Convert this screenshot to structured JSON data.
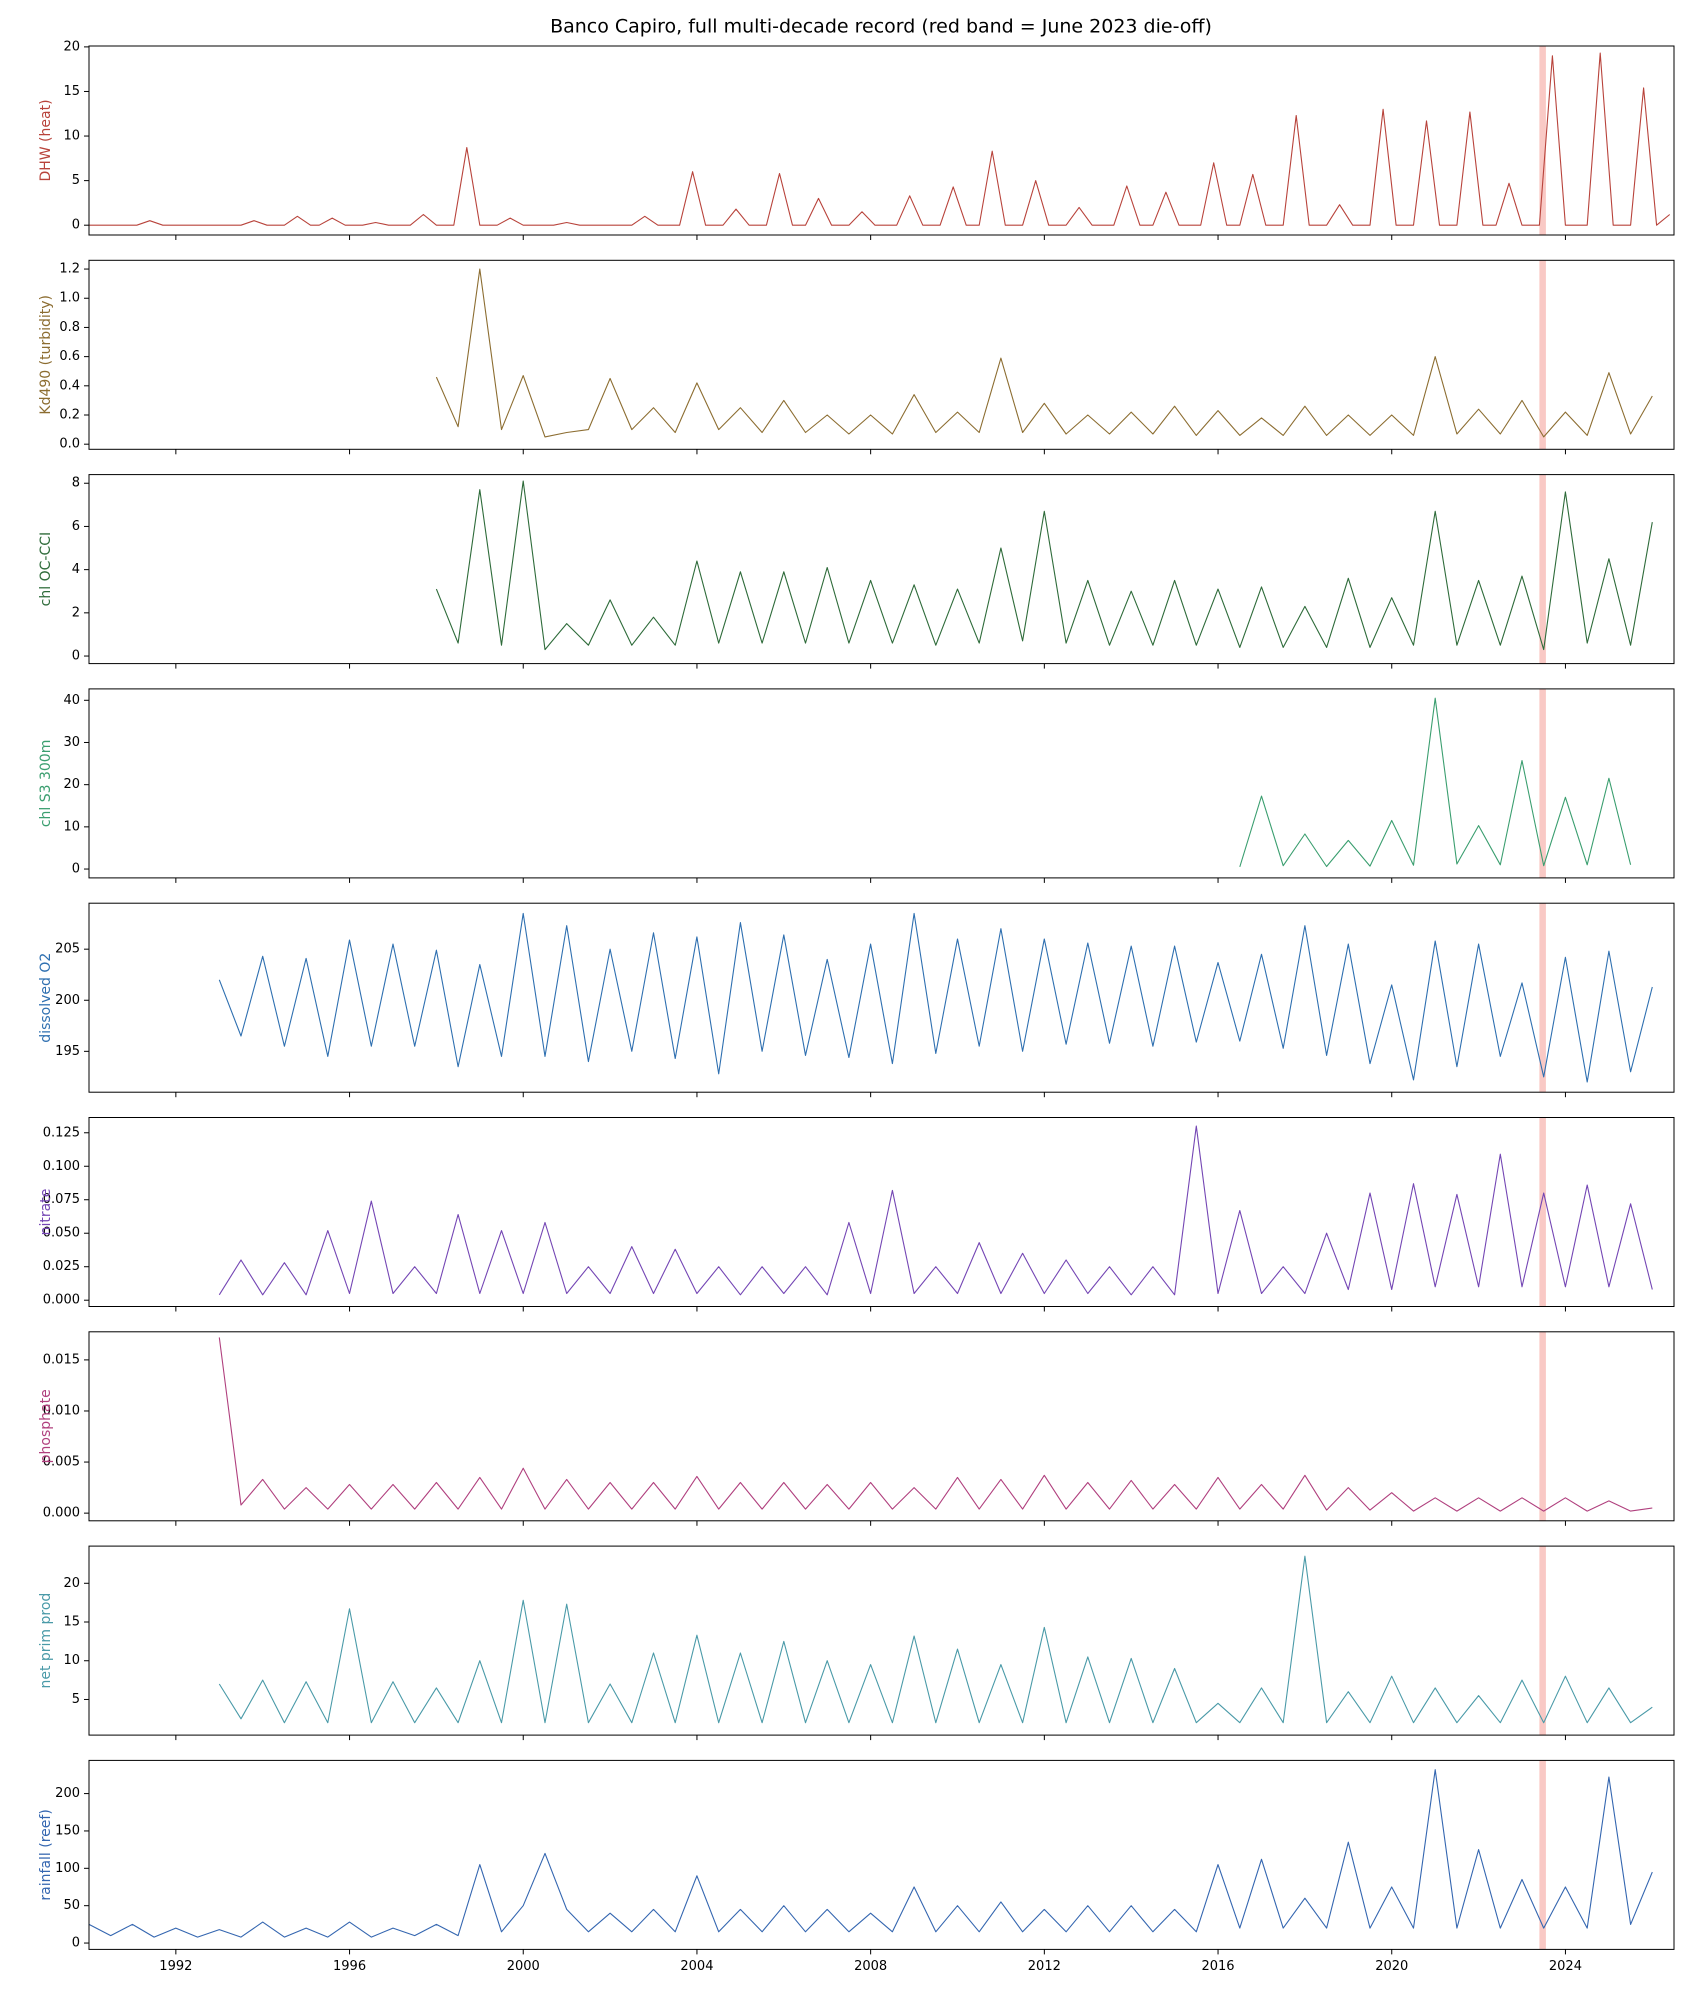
{
  "title": "Banco Capiro, full multi-decade record (red band = June 2023 die-off)",
  "xaxis": {
    "xlim": [
      1990,
      2026.5
    ],
    "xticks": [
      1992,
      1996,
      2000,
      2004,
      2008,
      2012,
      2016,
      2020,
      2024
    ]
  },
  "highlight": {
    "xlim": [
      2023.4,
      2023.55
    ],
    "color": "#f9c9c5"
  },
  "chart_data": [
    {
      "type": "line",
      "ylabel": "DHW (heat)",
      "color": "#b8433b",
      "ylim": [
        -1.1,
        20.1
      ],
      "yticks": [
        0,
        5,
        10,
        15,
        20
      ],
      "x": [
        1990,
        1991.1,
        1991.4,
        1991.7,
        1993.5,
        1993.8,
        1994.1,
        1994.5,
        1994.8,
        1995.1,
        1995.3,
        1995.6,
        1995.9,
        1996.3,
        1996.6,
        1996.9,
        1997.4,
        1997.7,
        1998.0,
        1998.4,
        1998.7,
        1999.0,
        1999.4,
        1999.7,
        2000.0,
        2000.7,
        2001.0,
        2001.3,
        2002.5,
        2002.8,
        2003.1,
        2003.6,
        2003.9,
        2004.2,
        2004.6,
        2004.9,
        2005.2,
        2005.6,
        2005.9,
        2006.2,
        2006.5,
        2006.8,
        2007.1,
        2007.5,
        2007.8,
        2008.1,
        2008.6,
        2008.9,
        2009.2,
        2009.6,
        2009.9,
        2010.2,
        2010.5,
        2010.8,
        2011.1,
        2011.5,
        2011.8,
        2012.1,
        2012.5,
        2012.8,
        2013.1,
        2013.6,
        2013.9,
        2014.2,
        2014.5,
        2014.8,
        2015.1,
        2015.6,
        2015.9,
        2016.2,
        2016.5,
        2016.8,
        2017.1,
        2017.5,
        2017.8,
        2018.1,
        2018.5,
        2018.8,
        2019.1,
        2019.5,
        2019.8,
        2020.1,
        2020.5,
        2020.8,
        2021.1,
        2021.5,
        2021.8,
        2022.1,
        2022.4,
        2022.7,
        2023.0,
        2023.4,
        2023.7,
        2024.0,
        2024.5,
        2024.8,
        2025.1,
        2025.5,
        2025.8,
        2026.1,
        2026.4
      ],
      "values": [
        0,
        0,
        0.5,
        0,
        0,
        0.5,
        0,
        0,
        1.0,
        0,
        0,
        0.8,
        0,
        0,
        0.3,
        0,
        0,
        1.2,
        0,
        0,
        8.7,
        0,
        0,
        0.8,
        0,
        0,
        0.3,
        0,
        0,
        1.0,
        0,
        0,
        6.0,
        0,
        0,
        1.8,
        0,
        0,
        5.8,
        0,
        0,
        3.0,
        0,
        0,
        1.5,
        0,
        0,
        3.3,
        0,
        0,
        4.3,
        0,
        0,
        8.3,
        0,
        0,
        5.0,
        0,
        0,
        2.0,
        0,
        0,
        4.4,
        0,
        0,
        3.7,
        0,
        0,
        7.0,
        0,
        0,
        5.7,
        0,
        0,
        12.3,
        0,
        0,
        2.3,
        0,
        0,
        13.0,
        0,
        0,
        11.7,
        0,
        0,
        12.7,
        0,
        0,
        4.7,
        0,
        0,
        19.0,
        0,
        0,
        19.3,
        0,
        0,
        15.4,
        0,
        1.2
      ]
    },
    {
      "type": "line",
      "ylabel": "Kd490 (turbidity)",
      "color": "#8c6d31",
      "ylim": [
        -0.035,
        1.26
      ],
      "yticks": [
        {
          "value": 0,
          "label": "0.0"
        },
        0.2,
        0.4,
        0.6,
        0.8,
        {
          "value": 1,
          "label": "1.0"
        },
        1.2
      ],
      "x": [
        1998,
        1998.5,
        1999,
        1999.5,
        2000,
        2000.5,
        2001,
        2001.5,
        2002,
        2002.5,
        2003,
        2003.5,
        2004,
        2004.5,
        2005,
        2005.5,
        2006,
        2006.5,
        2007,
        2007.5,
        2008,
        2008.5,
        2009,
        2009.5,
        2010,
        2010.5,
        2011,
        2011.5,
        2012,
        2012.5,
        2013,
        2013.5,
        2014,
        2014.5,
        2015,
        2015.5,
        2016,
        2016.5,
        2017,
        2017.5,
        2018,
        2018.5,
        2019,
        2019.5,
        2020,
        2020.5,
        2021,
        2021.5,
        2022,
        2022.5,
        2023,
        2023.5,
        2024,
        2024.5,
        2025,
        2025.5,
        2026
      ],
      "values": [
        0.46,
        0.12,
        1.2,
        0.1,
        0.47,
        0.05,
        0.08,
        0.1,
        0.45,
        0.1,
        0.25,
        0.08,
        0.42,
        0.1,
        0.25,
        0.08,
        0.3,
        0.08,
        0.2,
        0.07,
        0.2,
        0.07,
        0.34,
        0.08,
        0.22,
        0.08,
        0.59,
        0.08,
        0.28,
        0.07,
        0.2,
        0.07,
        0.22,
        0.07,
        0.26,
        0.06,
        0.23,
        0.06,
        0.18,
        0.06,
        0.26,
        0.06,
        0.2,
        0.06,
        0.2,
        0.06,
        0.6,
        0.07,
        0.24,
        0.07,
        0.3,
        0.05,
        0.22,
        0.06,
        0.49,
        0.07,
        0.33
      ]
    },
    {
      "type": "line",
      "ylabel": "chl OC-CCI",
      "color": "#2e6b3a",
      "ylim": [
        -0.35,
        8.4
      ],
      "yticks": [
        0,
        2,
        4,
        6,
        8
      ],
      "x": [
        1998,
        1998.5,
        1999,
        1999.5,
        2000,
        2000.5,
        2001,
        2001.5,
        2002,
        2002.5,
        2003,
        2003.5,
        2004,
        2004.5,
        2005,
        2005.5,
        2006,
        2006.5,
        2007,
        2007.5,
        2008,
        2008.5,
        2009,
        2009.5,
        2010,
        2010.5,
        2011,
        2011.5,
        2012,
        2012.5,
        2013,
        2013.5,
        2014,
        2014.5,
        2015,
        2015.5,
        2016,
        2016.5,
        2017,
        2017.5,
        2018,
        2018.5,
        2019,
        2019.5,
        2020,
        2020.5,
        2021,
        2021.5,
        2022,
        2022.5,
        2023,
        2023.5,
        2024,
        2024.5,
        2025,
        2025.5,
        2026
      ],
      "values": [
        3.1,
        0.6,
        7.7,
        0.5,
        8.1,
        0.3,
        1.5,
        0.5,
        2.6,
        0.5,
        1.8,
        0.5,
        4.4,
        0.6,
        3.9,
        0.6,
        3.9,
        0.6,
        4.1,
        0.6,
        3.5,
        0.6,
        3.3,
        0.5,
        3.1,
        0.6,
        5.0,
        0.7,
        6.7,
        0.6,
        3.5,
        0.5,
        3.0,
        0.5,
        3.5,
        0.5,
        3.1,
        0.4,
        3.2,
        0.4,
        2.3,
        0.4,
        3.6,
        0.4,
        2.7,
        0.5,
        6.7,
        0.5,
        3.5,
        0.5,
        3.7,
        0.3,
        7.6,
        0.6,
        4.5,
        0.5,
        6.2
      ]
    },
    {
      "type": "line",
      "ylabel": "chl S3 300m",
      "color": "#3a9e6f",
      "ylim": [
        -2.1,
        42.7
      ],
      "yticks": [
        0,
        10,
        20,
        30,
        40
      ],
      "x": [
        2016.5,
        2017,
        2017.5,
        2018,
        2018.5,
        2019,
        2019.5,
        2020,
        2020.5,
        2021,
        2021.5,
        2022,
        2022.5,
        2023,
        2023.5,
        2024,
        2024.5,
        2025,
        2025.5
      ],
      "values": [
        0.5,
        17.3,
        0.8,
        8.3,
        0.6,
        6.8,
        0.7,
        11.5,
        0.9,
        40.5,
        1.2,
        10.3,
        1.0,
        25.7,
        0.8,
        17.0,
        1.0,
        21.5,
        1.0
      ]
    },
    {
      "type": "line",
      "ylabel": "dissolved O2",
      "color": "#2e6fb0",
      "ylim": [
        191,
        209.5
      ],
      "yticks": [
        195,
        200,
        205
      ],
      "x": [
        1993,
        1993.5,
        1994,
        1994.5,
        1995,
        1995.5,
        1996,
        1996.5,
        1997,
        1997.5,
        1998,
        1998.5,
        1999,
        1999.5,
        2000,
        2000.5,
        2001,
        2001.5,
        2002,
        2002.5,
        2003,
        2003.5,
        2004,
        2004.5,
        2005,
        2005.5,
        2006,
        2006.5,
        2007,
        2007.5,
        2008,
        2008.5,
        2009,
        2009.5,
        2010,
        2010.5,
        2011,
        2011.5,
        2012,
        2012.5,
        2013,
        2013.5,
        2014,
        2014.5,
        2015,
        2015.5,
        2016,
        2016.5,
        2017,
        2017.5,
        2018,
        2018.5,
        2019,
        2019.5,
        2020,
        2020.5,
        2021,
        2021.5,
        2022,
        2022.5,
        2023,
        2023.5,
        2024,
        2024.5,
        2025,
        2025.5,
        2026
      ],
      "values": [
        202,
        196.5,
        204.3,
        195.5,
        204.1,
        194.5,
        205.9,
        195.5,
        205.5,
        195.5,
        204.9,
        193.5,
        203.5,
        194.5,
        208.5,
        194.5,
        207.3,
        194,
        205,
        195,
        206.6,
        194.3,
        206.2,
        192.8,
        207.6,
        195,
        206.4,
        194.6,
        204,
        194.4,
        205.5,
        193.8,
        208.5,
        194.8,
        206,
        195.5,
        207,
        195,
        206,
        195.7,
        205.6,
        195.8,
        205.3,
        195.5,
        205.3,
        195.9,
        203.7,
        196,
        204.5,
        195.3,
        207.3,
        194.6,
        205.5,
        193.8,
        201.5,
        192.2,
        205.8,
        193.5,
        205.5,
        194.5,
        201.7,
        192.5,
        204.2,
        192,
        204.8,
        193,
        201.3
      ]
    },
    {
      "type": "line",
      "ylabel": "nitrate",
      "color": "#7446b4",
      "ylim": [
        -0.0047,
        0.1364
      ],
      "yticks": [
        {
          "value": 0,
          "label": "0.000"
        },
        0.025,
        {
          "value": 0.05,
          "label": "0.050"
        },
        0.075,
        {
          "value": 0.1,
          "label": "0.100"
        },
        0.125
      ],
      "x": [
        1993,
        1993.5,
        1994,
        1994.5,
        1995,
        1995.5,
        1996,
        1996.5,
        1997,
        1997.5,
        1998,
        1998.5,
        1999,
        1999.5,
        2000,
        2000.5,
        2001,
        2001.5,
        2002,
        2002.5,
        2003,
        2003.5,
        2004,
        2004.5,
        2005,
        2005.5,
        2006,
        2006.5,
        2007,
        2007.5,
        2008,
        2008.5,
        2009,
        2009.5,
        2010,
        2010.5,
        2011,
        2011.5,
        2012,
        2012.5,
        2013,
        2013.5,
        2014,
        2014.5,
        2015,
        2015.5,
        2016,
        2016.5,
        2017,
        2017.5,
        2018,
        2018.5,
        2019,
        2019.5,
        2020,
        2020.5,
        2021,
        2021.5,
        2022,
        2022.5,
        2023,
        2023.5,
        2024,
        2024.5,
        2025,
        2025.5,
        2026
      ],
      "values": [
        0.004,
        0.03,
        0.004,
        0.028,
        0.004,
        0.052,
        0.005,
        0.074,
        0.005,
        0.025,
        0.005,
        0.064,
        0.005,
        0.052,
        0.005,
        0.058,
        0.005,
        0.025,
        0.005,
        0.04,
        0.005,
        0.038,
        0.005,
        0.025,
        0.004,
        0.025,
        0.005,
        0.025,
        0.004,
        0.058,
        0.005,
        0.082,
        0.005,
        0.025,
        0.005,
        0.043,
        0.005,
        0.035,
        0.005,
        0.03,
        0.005,
        0.025,
        0.004,
        0.025,
        0.004,
        0.13,
        0.005,
        0.067,
        0.005,
        0.025,
        0.005,
        0.05,
        0.008,
        0.08,
        0.008,
        0.087,
        0.01,
        0.079,
        0.01,
        0.109,
        0.01,
        0.08,
        0.01,
        0.086,
        0.01,
        0.072,
        0.008
      ]
    },
    {
      "type": "line",
      "ylabel": "phosphate",
      "color": "#b0407e",
      "ylim": [
        -0.00075,
        0.01775
      ],
      "yticks": [
        {
          "value": 0,
          "label": "0.000"
        },
        0.005,
        {
          "value": 0.01,
          "label": "0.010"
        },
        0.015
      ],
      "x": [
        1993,
        1993.5,
        1994,
        1994.5,
        1995,
        1995.5,
        1996,
        1996.5,
        1997,
        1997.5,
        1998,
        1998.5,
        1999,
        1999.5,
        2000,
        2000.5,
        2001,
        2001.5,
        2002,
        2002.5,
        2003,
        2003.5,
        2004,
        2004.5,
        2005,
        2005.5,
        2006,
        2006.5,
        2007,
        2007.5,
        2008,
        2008.5,
        2009,
        2009.5,
        2010,
        2010.5,
        2011,
        2011.5,
        2012,
        2012.5,
        2013,
        2013.5,
        2014,
        2014.5,
        2015,
        2015.5,
        2016,
        2016.5,
        2017,
        2017.5,
        2018,
        2018.5,
        2019,
        2019.5,
        2020,
        2020.5,
        2021,
        2021.5,
        2022,
        2022.5,
        2023,
        2023.5,
        2024,
        2024.5,
        2025,
        2025.5,
        2026
      ],
      "values": [
        0.0172,
        0.0008,
        0.0033,
        0.0004,
        0.0025,
        0.0004,
        0.0028,
        0.0004,
        0.0028,
        0.0004,
        0.003,
        0.0004,
        0.0035,
        0.0004,
        0.0044,
        0.0004,
        0.0033,
        0.0004,
        0.003,
        0.0004,
        0.003,
        0.0004,
        0.0036,
        0.0004,
        0.003,
        0.0004,
        0.003,
        0.0004,
        0.0028,
        0.0004,
        0.003,
        0.0004,
        0.0025,
        0.0004,
        0.0035,
        0.0004,
        0.0033,
        0.0004,
        0.0037,
        0.0004,
        0.003,
        0.0004,
        0.0032,
        0.0004,
        0.0028,
        0.0004,
        0.0035,
        0.0004,
        0.0028,
        0.0004,
        0.0037,
        0.0003,
        0.0025,
        0.0003,
        0.002,
        0.0002,
        0.0015,
        0.0002,
        0.0015,
        0.0002,
        0.0015,
        0.0002,
        0.0015,
        0.0002,
        0.0012,
        0.0002,
        0.0005
      ]
    },
    {
      "type": "line",
      "ylabel": "net prim prod",
      "color": "#4a9aa8",
      "ylim": [
        0.4,
        24.8
      ],
      "yticks": [
        5,
        10,
        15,
        20
      ],
      "x": [
        1993,
        1993.5,
        1994,
        1994.5,
        1995,
        1995.5,
        1996,
        1996.5,
        1997,
        1997.5,
        1998,
        1998.5,
        1999,
        1999.5,
        2000,
        2000.5,
        2001,
        2001.5,
        2002,
        2002.5,
        2003,
        2003.5,
        2004,
        2004.5,
        2005,
        2005.5,
        2006,
        2006.5,
        2007,
        2007.5,
        2008,
        2008.5,
        2009,
        2009.5,
        2010,
        2010.5,
        2011,
        2011.5,
        2012,
        2012.5,
        2013,
        2013.5,
        2014,
        2014.5,
        2015,
        2015.5,
        2016,
        2016.5,
        2017,
        2017.5,
        2018,
        2018.5,
        2019,
        2019.5,
        2020,
        2020.5,
        2021,
        2021.5,
        2022,
        2022.5,
        2023,
        2023.5,
        2024,
        2024.5,
        2025,
        2025.5,
        2026
      ],
      "values": [
        7,
        2.5,
        7.5,
        2,
        7.3,
        2,
        16.7,
        2,
        7.3,
        2,
        6.5,
        2,
        10,
        2,
        17.8,
        2,
        17.3,
        2,
        7,
        2,
        11,
        2,
        13.3,
        2,
        11,
        2,
        12.5,
        2,
        10,
        2,
        9.5,
        2,
        13.2,
        2,
        11.5,
        2,
        9.5,
        2,
        14.3,
        2,
        10.5,
        2,
        10.3,
        2,
        9,
        2,
        4.5,
        2,
        6.5,
        2,
        23.5,
        2,
        6,
        2,
        8,
        2,
        6.5,
        2,
        5.5,
        2,
        7.5,
        2,
        8,
        2,
        6.5,
        2,
        4
      ]
    },
    {
      "type": "line",
      "ylabel": "rainfall (reef)",
      "color": "#3466b0",
      "ylim": [
        -8.5,
        244.4
      ],
      "yticks": [
        0,
        50,
        100,
        150,
        200
      ],
      "x": [
        1990,
        1990.5,
        1991,
        1991.5,
        1992,
        1992.5,
        1993,
        1993.5,
        1994,
        1994.5,
        1995,
        1995.5,
        1996,
        1996.5,
        1997,
        1997.5,
        1998,
        1998.5,
        1999,
        1999.5,
        2000,
        2000.5,
        2001,
        2001.5,
        2002,
        2002.5,
        2003,
        2003.5,
        2004,
        2004.5,
        2005,
        2005.5,
        2006,
        2006.5,
        2007,
        2007.5,
        2008,
        2008.5,
        2009,
        2009.5,
        2010,
        2010.5,
        2011,
        2011.5,
        2012,
        2012.5,
        2013,
        2013.5,
        2014,
        2014.5,
        2015,
        2015.5,
        2016,
        2016.5,
        2017,
        2017.5,
        2018,
        2018.5,
        2019,
        2019.5,
        2020,
        2020.5,
        2021,
        2021.5,
        2022,
        2022.5,
        2023,
        2023.5,
        2024,
        2024.5,
        2025,
        2025.5,
        2026
      ],
      "values": [
        25,
        10,
        25,
        8,
        20,
        8,
        18,
        8,
        28,
        8,
        20,
        8,
        28,
        8,
        20,
        10,
        25,
        10,
        105,
        15,
        50,
        120,
        45,
        15,
        40,
        15,
        45,
        15,
        90,
        15,
        45,
        15,
        50,
        15,
        45,
        15,
        40,
        15,
        75,
        15,
        50,
        15,
        55,
        15,
        45,
        15,
        50,
        15,
        50,
        15,
        45,
        15,
        105,
        20,
        112,
        20,
        60,
        20,
        135,
        20,
        75,
        20,
        232,
        20,
        125,
        20,
        85,
        20,
        75,
        20,
        222,
        25,
        95
      ]
    }
  ]
}
